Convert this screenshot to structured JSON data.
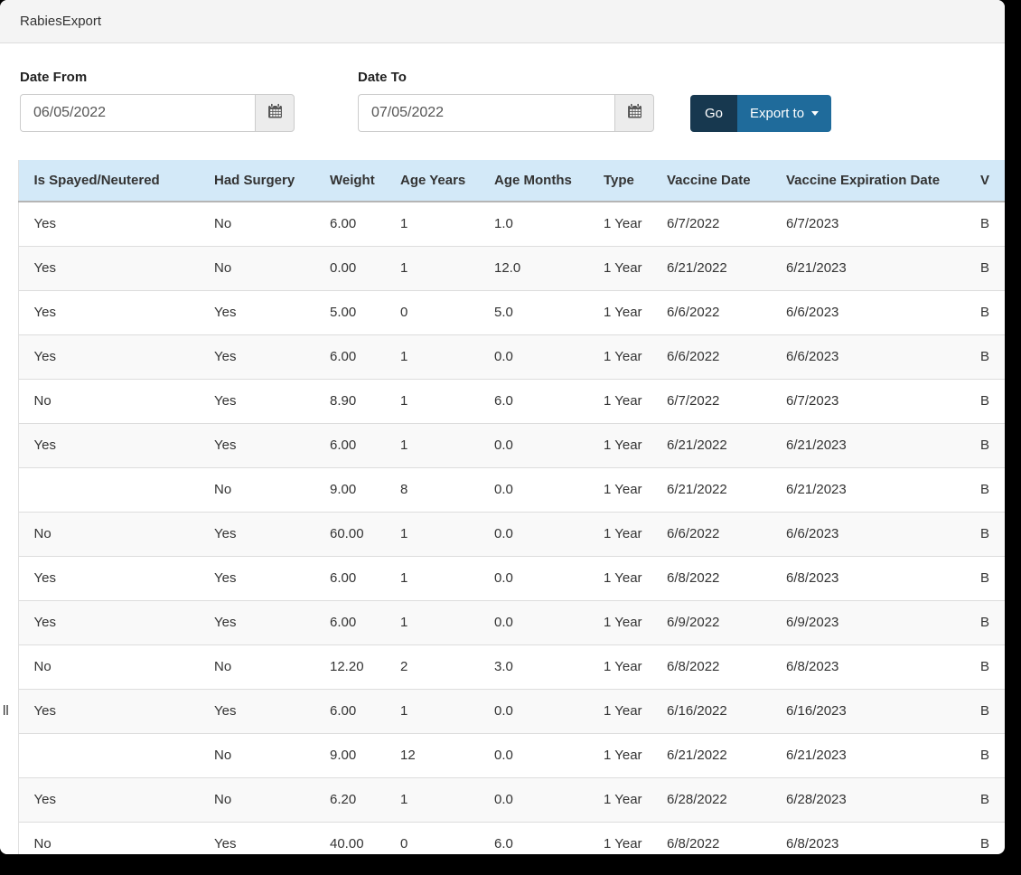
{
  "window": {
    "title": "RabiesExport"
  },
  "filters": {
    "date_from": {
      "label": "Date From",
      "value": "06/05/2022"
    },
    "date_to": {
      "label": "Date To",
      "value": "07/05/2022"
    },
    "go_label": "Go",
    "export_label": "Export to"
  },
  "icons": {
    "calendar": "calendar-icon",
    "caret": "caret-down-icon"
  },
  "colors": {
    "go_button": "#17384f",
    "export_button": "#1f6b9b",
    "table_header_bg": "#d3e9f8",
    "topbar_bg": "#f4f4f4",
    "row_stripe": "#f9f9f9",
    "row_border": "#dddddd",
    "screenshot_edge": "#000000"
  },
  "table": {
    "columns": [
      "",
      "Is Spayed/Neutered",
      "Had Surgery",
      "Weight",
      "Age Years",
      "Age Months",
      "Type",
      "Vaccine Date",
      "Vaccine Expiration Date",
      "V"
    ],
    "rows": [
      [
        "",
        "Yes",
        "No",
        "6.00",
        "1",
        "1.0",
        "1 Year",
        "6/7/2022",
        "6/7/2023",
        "B"
      ],
      [
        "",
        "Yes",
        "No",
        "0.00",
        "1",
        "12.0",
        "1 Year",
        "6/21/2022",
        "6/21/2023",
        "B"
      ],
      [
        "",
        "Yes",
        "Yes",
        "5.00",
        "0",
        "5.0",
        "1 Year",
        "6/6/2022",
        "6/6/2023",
        "B"
      ],
      [
        "",
        "Yes",
        "Yes",
        "6.00",
        "1",
        "0.0",
        "1 Year",
        "6/6/2022",
        "6/6/2023",
        "B"
      ],
      [
        "",
        "No",
        "Yes",
        "8.90",
        "1",
        "6.0",
        "1 Year",
        "6/7/2022",
        "6/7/2023",
        "B"
      ],
      [
        "",
        "Yes",
        "Yes",
        "6.00",
        "1",
        "0.0",
        "1 Year",
        "6/21/2022",
        "6/21/2023",
        "B"
      ],
      [
        "",
        "",
        "No",
        "9.00",
        "8",
        "0.0",
        "1 Year",
        "6/21/2022",
        "6/21/2023",
        "B"
      ],
      [
        "",
        "No",
        "Yes",
        "60.00",
        "1",
        "0.0",
        "1 Year",
        "6/6/2022",
        "6/6/2023",
        "B"
      ],
      [
        "",
        "Yes",
        "Yes",
        "6.00",
        "1",
        "0.0",
        "1 Year",
        "6/8/2022",
        "6/8/2023",
        "B"
      ],
      [
        "",
        "Yes",
        "Yes",
        "6.00",
        "1",
        "0.0",
        "1 Year",
        "6/9/2022",
        "6/9/2023",
        "B"
      ],
      [
        "",
        "No",
        "No",
        "12.20",
        "2",
        "3.0",
        "1 Year",
        "6/8/2022",
        "6/8/2023",
        "B"
      ],
      [
        "ll",
        "Yes",
        "Yes",
        "6.00",
        "1",
        "0.0",
        "1 Year",
        "6/16/2022",
        "6/16/2023",
        "B"
      ],
      [
        "",
        "",
        "No",
        "9.00",
        "12",
        "0.0",
        "1 Year",
        "6/21/2022",
        "6/21/2023",
        "B"
      ],
      [
        "",
        "Yes",
        "No",
        "6.20",
        "1",
        "0.0",
        "1 Year",
        "6/28/2022",
        "6/28/2023",
        "B"
      ],
      [
        "",
        "No",
        "Yes",
        "40.00",
        "0",
        "6.0",
        "1 Year",
        "6/8/2022",
        "6/8/2023",
        "B"
      ]
    ]
  }
}
